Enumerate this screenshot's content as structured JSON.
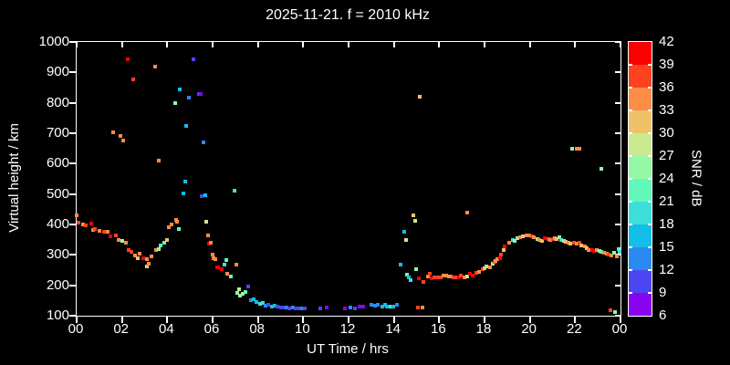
{
  "title": "2025-11-21. f = 2010 kHz",
  "x_axis": {
    "label": "UT Time / hrs",
    "tick_labels": [
      "00",
      "02",
      "04",
      "06",
      "08",
      "10",
      "12",
      "14",
      "16",
      "18",
      "20",
      "22",
      "00"
    ],
    "min": 0,
    "max": 24
  },
  "y_axis": {
    "label": "Virtual height / km",
    "tick_labels": [
      "100",
      "200",
      "300",
      "400",
      "500",
      "600",
      "700",
      "800",
      "900",
      "1000"
    ],
    "min": 100,
    "max": 1000
  },
  "colorbar": {
    "label": "SNR / dB",
    "tick_labels": [
      "42",
      "39",
      "36",
      "33",
      "30",
      "27",
      "24",
      "21",
      "18",
      "15",
      "12",
      "9",
      "6"
    ],
    "min": 6,
    "max": 42,
    "step": 3,
    "band_colors_low_to_high": [
      "#8a04f0",
      "#4c46f2",
      "#2a8af2",
      "#14bee8",
      "#3ce0d8",
      "#62f8ba",
      "#94f8a6",
      "#c9e98e",
      "#f0c268",
      "#fc8c46",
      "#fc421e",
      "#fa0000"
    ]
  },
  "chart_data": {
    "type": "scatter",
    "title": "2025-11-21. f = 2010 kHz",
    "xlabel": "UT Time / hrs",
    "ylabel": "Virtual height / km",
    "color_label": "SNR / dB",
    "xlim": [
      0,
      24
    ],
    "ylim": [
      100,
      1000
    ],
    "grid": false,
    "point_format": [
      "ut_hr",
      "virtual_height_km",
      "snr_db"
    ],
    "points": [
      [
        0.02,
        430,
        34
      ],
      [
        0.08,
        405,
        37
      ],
      [
        0.28,
        400,
        34
      ],
      [
        0.41,
        397,
        37
      ],
      [
        0.64,
        403,
        40
      ],
      [
        0.72,
        382,
        34
      ],
      [
        0.81,
        385,
        37
      ],
      [
        1.02,
        380,
        34
      ],
      [
        1.22,
        377,
        37
      ],
      [
        1.35,
        375,
        34
      ],
      [
        1.49,
        360,
        40
      ],
      [
        1.61,
        703,
        34
      ],
      [
        1.75,
        363,
        37
      ],
      [
        1.85,
        350,
        34
      ],
      [
        1.94,
        692,
        34
      ],
      [
        2.02,
        345,
        25
      ],
      [
        2.04,
        677,
        34
      ],
      [
        2.16,
        340,
        34
      ],
      [
        2.27,
        942,
        40
      ],
      [
        2.3,
        317,
        37
      ],
      [
        2.43,
        310,
        37
      ],
      [
        2.51,
        878,
        37
      ],
      [
        2.56,
        297,
        34
      ],
      [
        2.7,
        290,
        31
      ],
      [
        2.76,
        305,
        34
      ],
      [
        2.94,
        290,
        40
      ],
      [
        3.1,
        285,
        34
      ],
      [
        3.1,
        262,
        31
      ],
      [
        3.17,
        270,
        34
      ],
      [
        3.3,
        295,
        34
      ],
      [
        3.47,
        919,
        34
      ],
      [
        3.5,
        315,
        34
      ],
      [
        3.61,
        318,
        25
      ],
      [
        3.62,
        610,
        34
      ],
      [
        3.7,
        332,
        22
      ],
      [
        3.88,
        340,
        22
      ],
      [
        3.97,
        348,
        31
      ],
      [
        4.07,
        392,
        34
      ],
      [
        4.17,
        400,
        34
      ],
      [
        4.33,
        798,
        25
      ],
      [
        4.38,
        415,
        34
      ],
      [
        4.42,
        408,
        34
      ],
      [
        4.51,
        385,
        22
      ],
      [
        4.57,
        845,
        16
      ],
      [
        4.71,
        502,
        16
      ],
      [
        4.78,
        540,
        16
      ],
      [
        4.85,
        724,
        16
      ],
      [
        4.94,
        817,
        13
      ],
      [
        5.17,
        942,
        10
      ],
      [
        5.41,
        830,
        10
      ],
      [
        5.48,
        828,
        7
      ],
      [
        5.52,
        492,
        10
      ],
      [
        5.59,
        670,
        13
      ],
      [
        5.68,
        495,
        16
      ],
      [
        5.71,
        410,
        28
      ],
      [
        5.78,
        365,
        34
      ],
      [
        5.85,
        338,
        40
      ],
      [
        5.92,
        340,
        34
      ],
      [
        5.99,
        300,
        34
      ],
      [
        6.05,
        290,
        34
      ],
      [
        6.12,
        285,
        34
      ],
      [
        6.19,
        260,
        40
      ],
      [
        6.26,
        260,
        40
      ],
      [
        6.39,
        253,
        40
      ],
      [
        6.53,
        267,
        19
      ],
      [
        6.59,
        283,
        22
      ],
      [
        6.63,
        237,
        34
      ],
      [
        6.8,
        230,
        22
      ],
      [
        6.96,
        510,
        19
      ],
      [
        7.03,
        267,
        34
      ],
      [
        7.09,
        175,
        25
      ],
      [
        7.17,
        187,
        28
      ],
      [
        7.19,
        167,
        25
      ],
      [
        7.33,
        173,
        25
      ],
      [
        7.46,
        177,
        22
      ],
      [
        7.57,
        195,
        10
      ],
      [
        7.7,
        150,
        13
      ],
      [
        7.8,
        153,
        16
      ],
      [
        7.93,
        145,
        16
      ],
      [
        8.1,
        140,
        19
      ],
      [
        8.2,
        143,
        19
      ],
      [
        8.33,
        133,
        13
      ],
      [
        8.47,
        135,
        10
      ],
      [
        8.6,
        130,
        16
      ],
      [
        8.74,
        133,
        16
      ],
      [
        8.87,
        130,
        10
      ],
      [
        9.0,
        127,
        10
      ],
      [
        9.14,
        128,
        10
      ],
      [
        9.27,
        127,
        13
      ],
      [
        9.4,
        125,
        10
      ],
      [
        9.54,
        128,
        13
      ],
      [
        9.67,
        125,
        10
      ],
      [
        9.81,
        123,
        10
      ],
      [
        9.94,
        125,
        13
      ],
      [
        10.08,
        123,
        10
      ],
      [
        10.75,
        125,
        10
      ],
      [
        11.02,
        127,
        7
      ],
      [
        11.82,
        125,
        7
      ],
      [
        12.09,
        127,
        13
      ],
      [
        12.29,
        125,
        10
      ],
      [
        12.5,
        130,
        7
      ],
      [
        12.66,
        130,
        7
      ],
      [
        13.0,
        137,
        13
      ],
      [
        13.17,
        133,
        13
      ],
      [
        13.3,
        135,
        13
      ],
      [
        13.47,
        130,
        16
      ],
      [
        13.6,
        135,
        16
      ],
      [
        13.7,
        130,
        16
      ],
      [
        13.85,
        130,
        19
      ],
      [
        13.98,
        130,
        16
      ],
      [
        14.15,
        135,
        13
      ],
      [
        14.31,
        267,
        16
      ],
      [
        14.45,
        375,
        16
      ],
      [
        14.52,
        348,
        28
      ],
      [
        14.58,
        235,
        22
      ],
      [
        14.65,
        225,
        16
      ],
      [
        14.72,
        217,
        19
      ],
      [
        14.86,
        430,
        31
      ],
      [
        14.93,
        412,
        28
      ],
      [
        14.99,
        253,
        25
      ],
      [
        15.05,
        127,
        37
      ],
      [
        15.12,
        223,
        40
      ],
      [
        15.15,
        820,
        31
      ],
      [
        15.26,
        127,
        34
      ],
      [
        15.32,
        210,
        37
      ],
      [
        15.5,
        230,
        34
      ],
      [
        15.59,
        237,
        37
      ],
      [
        15.66,
        223,
        40
      ],
      [
        15.8,
        225,
        37
      ],
      [
        15.93,
        225,
        37
      ],
      [
        16.06,
        225,
        37
      ],
      [
        16.2,
        233,
        34
      ],
      [
        16.32,
        233,
        34
      ],
      [
        16.43,
        230,
        34
      ],
      [
        16.53,
        230,
        34
      ],
      [
        16.65,
        225,
        37
      ],
      [
        16.76,
        225,
        37
      ],
      [
        16.87,
        225,
        40
      ],
      [
        16.95,
        233,
        37
      ],
      [
        17.1,
        225,
        34
      ],
      [
        17.22,
        440,
        34
      ],
      [
        17.23,
        230,
        28
      ],
      [
        17.37,
        237,
        40
      ],
      [
        17.46,
        233,
        40
      ],
      [
        17.64,
        240,
        37
      ],
      [
        17.77,
        245,
        34
      ],
      [
        17.9,
        253,
        37
      ],
      [
        18.0,
        257,
        31
      ],
      [
        18.1,
        263,
        25
      ],
      [
        18.23,
        260,
        34
      ],
      [
        18.37,
        270,
        28
      ],
      [
        18.44,
        277,
        37
      ],
      [
        18.49,
        280,
        34
      ],
      [
        18.57,
        287,
        34
      ],
      [
        18.7,
        290,
        40
      ],
      [
        18.74,
        300,
        37
      ],
      [
        18.83,
        315,
        31
      ],
      [
        18.9,
        327,
        40
      ],
      [
        19.1,
        340,
        34
      ],
      [
        19.24,
        350,
        19
      ],
      [
        19.33,
        347,
        25
      ],
      [
        19.44,
        355,
        25
      ],
      [
        19.57,
        357,
        34
      ],
      [
        19.7,
        360,
        31
      ],
      [
        19.85,
        363,
        34
      ],
      [
        19.98,
        365,
        34
      ],
      [
        20.09,
        360,
        37
      ],
      [
        20.19,
        357,
        34
      ],
      [
        20.32,
        353,
        25
      ],
      [
        20.43,
        350,
        34
      ],
      [
        20.55,
        347,
        31
      ],
      [
        20.66,
        355,
        40
      ],
      [
        20.8,
        353,
        37
      ],
      [
        20.9,
        350,
        34
      ],
      [
        21.0,
        353,
        37
      ],
      [
        21.09,
        355,
        34
      ],
      [
        21.2,
        353,
        31
      ],
      [
        21.31,
        357,
        25
      ],
      [
        21.4,
        350,
        19
      ],
      [
        21.5,
        345,
        25
      ],
      [
        21.6,
        343,
        31
      ],
      [
        21.71,
        340,
        34
      ],
      [
        21.8,
        337,
        31
      ],
      [
        21.88,
        650,
        25
      ],
      [
        21.94,
        340,
        37
      ],
      [
        22.05,
        337,
        34
      ],
      [
        22.08,
        650,
        34
      ],
      [
        22.17,
        340,
        37
      ],
      [
        22.2,
        650,
        34
      ],
      [
        22.28,
        330,
        31
      ],
      [
        22.41,
        327,
        34
      ],
      [
        22.52,
        323,
        31
      ],
      [
        22.61,
        317,
        34
      ],
      [
        22.75,
        315,
        40
      ],
      [
        22.84,
        313,
        40
      ],
      [
        22.95,
        315,
        34
      ],
      [
        23.06,
        313,
        25
      ],
      [
        23.15,
        310,
        22
      ],
      [
        23.16,
        582,
        25
      ],
      [
        23.28,
        307,
        34
      ],
      [
        23.38,
        303,
        34
      ],
      [
        23.48,
        300,
        37
      ],
      [
        23.55,
        118,
        37
      ],
      [
        23.59,
        297,
        34
      ],
      [
        23.73,
        307,
        25
      ],
      [
        23.75,
        112,
        25
      ],
      [
        23.82,
        295,
        34
      ],
      [
        23.91,
        318,
        22
      ],
      [
        23.95,
        310,
        19
      ]
    ]
  }
}
